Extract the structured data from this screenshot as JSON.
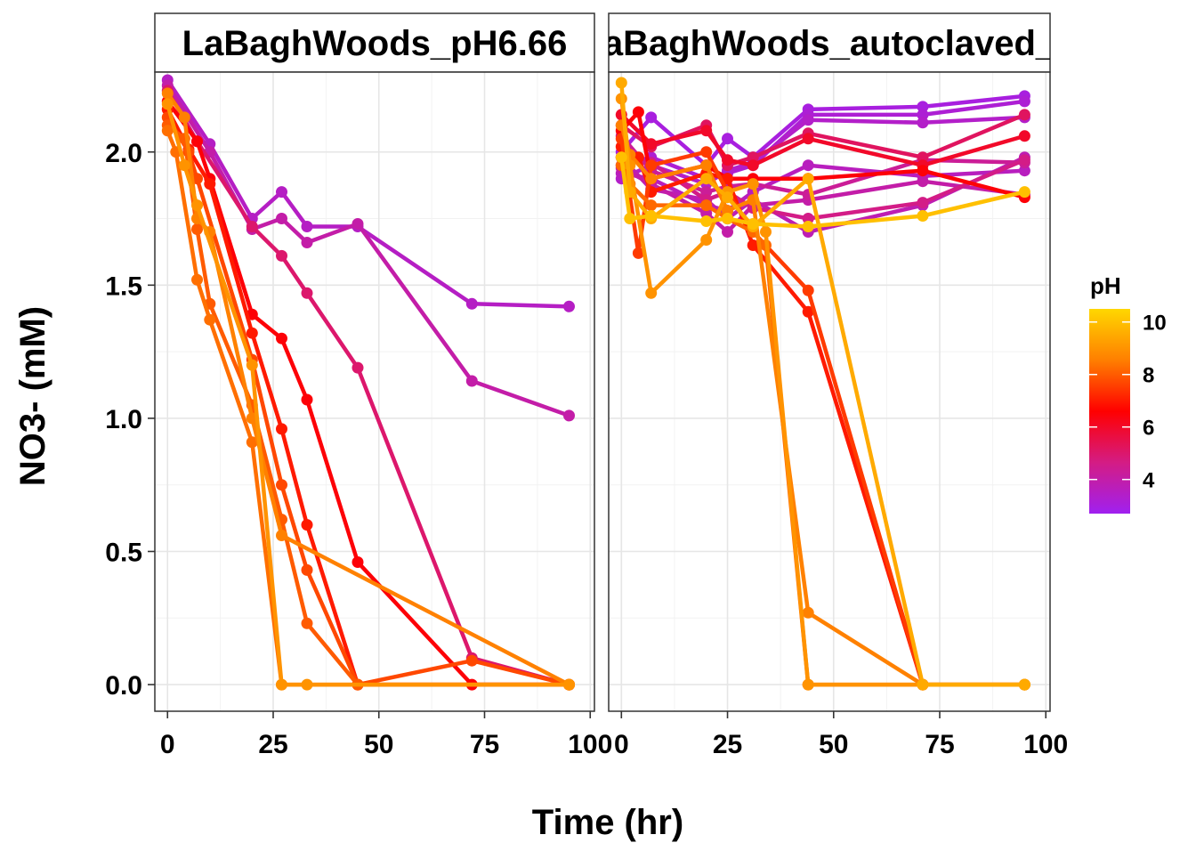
{
  "chart_data": {
    "type": "line",
    "xlabel": "Time (hr)",
    "ylabel": "NO3- (mM)",
    "xlim": [
      -3,
      101
    ],
    "ylim": [
      -0.1,
      2.3
    ],
    "x_ticks": [
      0,
      25,
      50,
      75,
      100
    ],
    "x_tick_labels_left": [
      "0",
      "25",
      "50",
      "75",
      "100"
    ],
    "x_tick_labels_right": [
      "0",
      "25",
      "50",
      "75",
      "100"
    ],
    "y_ticks": [
      0.0,
      0.5,
      1.0,
      1.5,
      2.0
    ],
    "y_tick_labels": [
      "0.0",
      "0.5",
      "1.0",
      "1.5",
      "2.0"
    ],
    "grid": true,
    "legend": {
      "title": "pH",
      "position": "right",
      "range": [
        2.7,
        10.5
      ],
      "ticks": [
        4,
        6,
        8,
        10
      ],
      "tick_labels": [
        "4",
        "6",
        "8",
        "10"
      ],
      "colors": [
        "#A020F0",
        "#D41C84",
        "#FF0000",
        "#FF7F00",
        "#FFD700"
      ]
    },
    "panels": [
      {
        "title": "LaBaghWoods_pH6.66",
        "series": [
          {
            "ph": 3.5,
            "x": [
              0,
              10,
              20,
              27,
              33,
              45,
              72,
              95
            ],
            "y": [
              2.27,
              2.03,
              1.75,
              1.85,
              1.72,
              1.72,
              1.43,
              1.42
            ]
          },
          {
            "ph": 4.0,
            "x": [
              0,
              10,
              20,
              27,
              33,
              45,
              72,
              95
            ],
            "y": [
              2.25,
              2.0,
              1.71,
              1.75,
              1.66,
              1.73,
              1.14,
              1.01
            ]
          },
          {
            "ph": 5.0,
            "x": [
              0,
              7,
              20,
              27,
              33,
              45,
              72,
              95
            ],
            "y": [
              2.23,
              2.04,
              1.72,
              1.61,
              1.47,
              1.19,
              0.1,
              0.0
            ]
          },
          {
            "ph": 6.5,
            "x": [
              0,
              7,
              10,
              20,
              27,
              33,
              45,
              72,
              95
            ],
            "y": [
              2.19,
              2.04,
              1.9,
              1.39,
              1.3,
              1.07,
              0.46,
              0.0,
              0.0
            ]
          },
          {
            "ph": 7.0,
            "x": [
              0,
              5,
              10,
              20,
              27,
              33,
              45,
              95
            ],
            "y": [
              2.16,
              2.01,
              1.88,
              1.32,
              0.96,
              0.6,
              0.0,
              0.0
            ]
          },
          {
            "ph": 7.7,
            "x": [
              0,
              5,
              7,
              20,
              27,
              33,
              45,
              72,
              95
            ],
            "y": [
              2.13,
              2.0,
              1.9,
              1.22,
              0.75,
              0.43,
              0.0,
              0.09,
              0.0
            ]
          },
          {
            "ph": 8.0,
            "x": [
              0,
              4,
              7,
              10,
              20,
              27,
              33,
              45,
              95
            ],
            "y": [
              2.1,
              2.05,
              1.71,
              1.43,
              1.05,
              0.62,
              0.23,
              0.0,
              0.0
            ]
          },
          {
            "ph": 8.3,
            "x": [
              0,
              2,
              7,
              10,
              20,
              27,
              95
            ],
            "y": [
              2.08,
              2.0,
              1.52,
              1.37,
              0.91,
              0.0,
              0.0
            ]
          },
          {
            "ph": 8.6,
            "x": [
              0,
              4,
              7,
              10,
              20,
              27,
              95
            ],
            "y": [
              2.22,
              2.13,
              1.75,
              1.7,
              1.0,
              0.56,
              0.0
            ]
          },
          {
            "ph": 9.0,
            "x": [
              0,
              4,
              7,
              20,
              27,
              33,
              95
            ],
            "y": [
              2.18,
              1.95,
              1.8,
              1.2,
              0.0,
              0.0,
              0.0
            ]
          }
        ]
      },
      {
        "title": "LaBaghWoods_autoclaved_p",
        "series": [
          {
            "ph": 3.0,
            "x": [
              0,
              7,
              20,
              25,
              31,
              44,
              71,
              95
            ],
            "y": [
              2.0,
              2.13,
              1.95,
              2.05,
              1.98,
              2.16,
              2.17,
              2.21
            ]
          },
          {
            "ph": 3.2,
            "x": [
              0,
              7,
              20,
              25,
              31,
              44,
              71,
              95
            ],
            "y": [
              1.95,
              1.98,
              1.9,
              1.92,
              1.95,
              2.14,
              2.14,
              2.19
            ]
          },
          {
            "ph": 3.4,
            "x": [
              0,
              7,
              20,
              25,
              31,
              44,
              71,
              95
            ],
            "y": [
              1.9,
              1.95,
              1.88,
              1.93,
              1.96,
              2.12,
              2.11,
              2.13
            ]
          },
          {
            "ph": 3.6,
            "x": [
              0,
              7,
              20,
              25,
              31,
              44,
              71,
              95
            ],
            "y": [
              1.92,
              1.9,
              1.8,
              1.78,
              1.85,
              1.95,
              1.91,
              1.93
            ]
          },
          {
            "ph": 3.8,
            "x": [
              0,
              7,
              20,
              25,
              31,
              44,
              71,
              95
            ],
            "y": [
              1.98,
              1.86,
              1.82,
              1.75,
              1.82,
              1.7,
              1.8,
              1.98
            ]
          },
          {
            "ph": 4.0,
            "x": [
              0,
              7,
              20,
              25,
              31,
              44,
              71,
              95
            ],
            "y": [
              1.94,
              1.88,
              1.77,
              1.7,
              1.8,
              1.82,
              1.89,
              1.84
            ]
          },
          {
            "ph": 4.3,
            "x": [
              0,
              7,
              20,
              25,
              31,
              44,
              71,
              95
            ],
            "y": [
              2.06,
              1.93,
              1.85,
              1.87,
              1.88,
              1.84,
              1.97,
              1.96
            ]
          },
          {
            "ph": 4.6,
            "x": [
              0,
              7,
              20,
              25,
              31,
              44,
              71,
              95
            ],
            "y": [
              1.98,
              1.96,
              1.82,
              1.85,
              1.79,
              1.75,
              1.81,
              1.97
            ]
          },
          {
            "ph": 5.2,
            "x": [
              0,
              7,
              20,
              25,
              31,
              44,
              71,
              95
            ],
            "y": [
              2.1,
              2.02,
              2.1,
              1.95,
              1.98,
              2.07,
              1.98,
              2.14
            ]
          },
          {
            "ph": 6.0,
            "x": [
              0,
              7,
              20,
              25,
              31,
              44,
              71,
              95
            ],
            "y": [
              2.14,
              2.03,
              2.08,
              1.97,
              1.95,
              2.05,
              1.95,
              2.06
            ]
          },
          {
            "ph": 6.5,
            "x": [
              0,
              4,
              7,
              20,
              25,
              31,
              44,
              71,
              95
            ],
            "y": [
              2.08,
              2.15,
              1.9,
              1.95,
              1.9,
              1.9,
              1.9,
              1.93,
              1.83
            ]
          },
          {
            "ph": 7.0,
            "x": [
              0,
              4,
              7,
              20,
              25,
              31,
              44,
              71
            ],
            "y": [
              2.02,
              1.98,
              1.85,
              1.92,
              1.9,
              1.65,
              1.4,
              0.0
            ]
          },
          {
            "ph": 7.5,
            "x": [
              0,
              4,
              7,
              20,
              25,
              31,
              44,
              71,
              95
            ],
            "y": [
              2.05,
              1.62,
              1.95,
              2.0,
              1.85,
              1.7,
              1.48,
              0.0,
              0.0
            ]
          },
          {
            "ph": 8.2,
            "x": [
              0,
              2,
              7,
              20,
              25,
              31,
              34,
              44,
              95
            ],
            "y": [
              1.95,
              1.88,
              1.8,
              1.8,
              1.75,
              1.7,
              1.65,
              0.0,
              0.0
            ]
          },
          {
            "ph": 8.6,
            "x": [
              0,
              2,
              7,
              20,
              25,
              31,
              44,
              71,
              95
            ],
            "y": [
              2.1,
              1.99,
              1.9,
              1.95,
              1.78,
              1.82,
              0.27,
              0.0,
              0.0
            ]
          },
          {
            "ph": 9.0,
            "x": [
              0,
              2,
              7,
              20,
              25,
              31,
              34,
              44,
              95
            ],
            "y": [
              2.2,
              1.95,
              1.47,
              1.67,
              1.85,
              1.88,
              1.7,
              0.0,
              0.0
            ]
          },
          {
            "ph": 9.5,
            "x": [
              0,
              2,
              7,
              20,
              25,
              31,
              44,
              71,
              95
            ],
            "y": [
              2.26,
              1.85,
              1.75,
              1.9,
              1.83,
              1.72,
              1.9,
              0.0,
              0.0
            ]
          },
          {
            "ph": 10.0,
            "x": [
              0,
              2,
              7,
              20,
              25,
              31,
              44,
              71,
              95
            ],
            "y": [
              1.98,
              1.75,
              1.76,
              1.74,
              1.75,
              1.73,
              1.72,
              1.76,
              1.85
            ]
          }
        ]
      }
    ]
  }
}
